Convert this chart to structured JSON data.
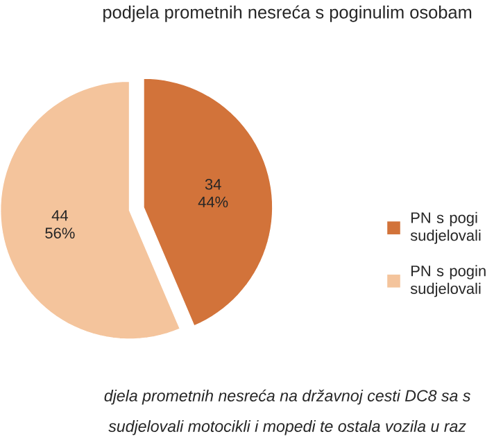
{
  "chart_data": {
    "type": "pie",
    "title": "podjela prometnih nesreća s poginulim osobam",
    "categories": [
      "PN s pogi sudjelovali",
      "PN s pogin sudjelovali"
    ],
    "values": [
      34,
      44
    ],
    "value_labels": [
      "34 44%",
      "44 56%"
    ],
    "colors": [
      "#d2733a",
      "#f4c49c"
    ],
    "legend": "right",
    "annotations": [
      "djela prometnih nesreća na državnoj cesti DC8 sa s",
      "sudjelovali motocikli i mopedi te ostala vozila u raz"
    ]
  }
}
